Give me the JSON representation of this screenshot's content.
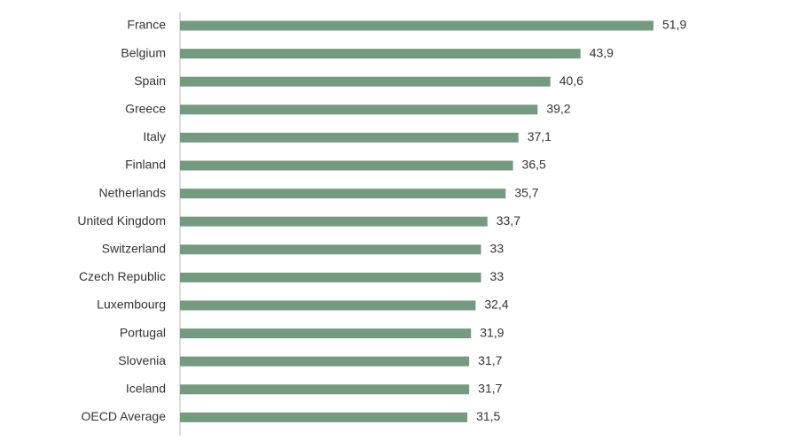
{
  "chart_data": {
    "type": "bar",
    "orientation": "horizontal",
    "color": "#749a7f",
    "categories": [
      "France",
      "Belgium",
      "Spain",
      "Greece",
      "Italy",
      "Finland",
      "Netherlands",
      "United Kingdom",
      "Switzerland",
      "Czech Republic",
      "Luxembourg",
      "Portugal",
      "Slovenia",
      "Iceland",
      "OECD Average"
    ],
    "values": [
      51.9,
      43.9,
      40.6,
      39.2,
      37.1,
      36.5,
      35.7,
      33.7,
      33,
      33,
      32.4,
      31.9,
      31.7,
      31.7,
      31.5
    ],
    "value_labels": [
      "51,9",
      "43,9",
      "40,6",
      "39,2",
      "37,1",
      "36,5",
      "35,7",
      "33,7",
      "33",
      "33",
      "32,4",
      "31,9",
      "31,7",
      "31,7",
      "31,5"
    ]
  }
}
